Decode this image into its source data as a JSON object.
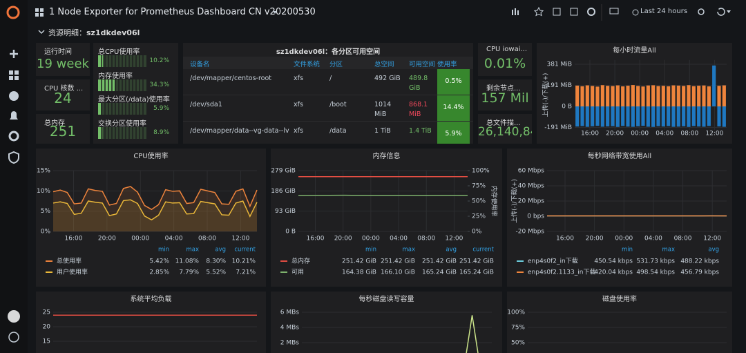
{
  "topbar": {
    "title": "1 Node Exporter for Prometheus Dashboard CN v20200530",
    "time_range": "Last 24 hours"
  },
  "row": {
    "label": "资源明细：",
    "host": "sz1dkdev06l"
  },
  "stats": [
    {
      "title": "运行时间",
      "value": "19 week",
      "color": "#73bf69"
    },
    {
      "title": "CPU 核数 ...",
      "value": 24,
      "color": "#73bf69"
    },
    {
      "title": "总内存",
      "value": 251,
      "color": "#73bf69"
    },
    {
      "title": "CPU iowai...",
      "value": "0.01%",
      "color": "#73bf69"
    },
    {
      "title": "剩余节点...",
      "value": "157 Mil",
      "color": "#73bf69"
    },
    {
      "title": "总文件描...",
      "value": "26,140,84",
      "color": "#73bf69"
    }
  ],
  "gauges": {
    "range": [
      0,
      100
    ],
    "color": "#73bf69",
    "items": [
      {
        "label": "总CPU使用率",
        "value": 10.2,
        "value_label": "10.2%"
      },
      {
        "label": "内存使用率",
        "value": 34.3,
        "value_label": "34.3%"
      },
      {
        "label": "最大分区(/data)使用率",
        "value": 5.9,
        "value_label": "5.9%"
      },
      {
        "label": "交换分区使用率",
        "value": 8.9,
        "value_label": "8.9%"
      }
    ]
  },
  "table": {
    "title": "sz1dkdev06l：各分区可用空间",
    "columns": [
      "设备名",
      "文件系统",
      "分区",
      "总空间",
      "可用空间",
      "使用率"
    ],
    "rows": [
      [
        "/dev/mapper/centos-root",
        "xfs",
        "/",
        "492 GiB",
        "489.8 GiB",
        "0.5%"
      ],
      [
        "/dev/sda1",
        "xfs",
        "/boot",
        "1014 MiB",
        "868.1 MiB",
        "14.4%"
      ],
      [
        "/dev/mapper/data--vg-data--lv",
        "xfs",
        "/data",
        "1 TiB",
        "1.4 TiB",
        "5.9%"
      ]
    ],
    "available_colors": [
      "#73bf69",
      "#f2495c",
      "#73bf69"
    ],
    "usage_color": "#37872d"
  },
  "graphs": [
    {
      "type": "bar",
      "title": "每小时流量All",
      "ylim": [
        -215,
        420
      ],
      "yticks": [
        {
          "value": 381,
          "label": "381 MiB"
        },
        {
          "value": 191,
          "label": "191 MiB"
        },
        {
          "value": 0,
          "label": "0 B"
        },
        {
          "value": -191,
          "label": "-191 MiB"
        }
      ],
      "xticks": [
        "16:00",
        "20:00",
        "00:00",
        "04:00",
        "08:00",
        "12:00"
      ],
      "y_label": "上传(-)/下载(+)",
      "series": [
        {
          "color": "#ef843c",
          "values": [
            188,
            182,
            190,
            185,
            179,
            192,
            186,
            184,
            190,
            181,
            187,
            193,
            185,
            180,
            189,
            191,
            184,
            186,
            182,
            190,
            188,
            185,
            192,
            183,
            187,
            189,
            181,
            null,
            186,
            190
          ]
        },
        {
          "color": "#1f78c1",
          "values": [
            -182,
            -178,
            -185,
            -180,
            -176,
            -184,
            -181,
            -179,
            -186,
            -177,
            -183,
            -185,
            -180,
            -176,
            -184,
            -186,
            -179,
            -182,
            -178,
            -185,
            -183,
            -180,
            -186,
            -178,
            -182,
            -184,
            -177,
            370,
            -181,
            -185
          ]
        }
      ]
    },
    {
      "type": "line",
      "title": "CPU使用率",
      "ylim": [
        0,
        15
      ],
      "fill": true,
      "yticks": [
        {
          "value": 15,
          "label": "15%"
        },
        {
          "value": 10,
          "label": "10%"
        },
        {
          "value": 5,
          "label": "5%"
        },
        {
          "value": 0,
          "label": "0%"
        }
      ],
      "xticks": [
        "16:00",
        "20:00",
        "00:00",
        "04:00",
        "08:00",
        "12:00"
      ],
      "legend_columns": [
        "min",
        "max",
        "avg",
        "current"
      ],
      "series": [
        {
          "name": "总使用率",
          "color": "#ef843c",
          "values": [
            9.8,
            10.2,
            9.6,
            6.8,
            7.0,
            10.5,
            10.1,
            9.9,
            6.5,
            6.9,
            10.6,
            11.08,
            9.7,
            6.4,
            5.42,
            6.6,
            10.3,
            9.9,
            10.0,
            6.9,
            7.1,
            10.4,
            10.0,
            9.6,
            6.8,
            6.7,
            9.9,
            10.5,
            6.2,
            10.21
          ],
          "stats": [
            "5.42%",
            "11.08%",
            "8.30%",
            "10.21%"
          ]
        },
        {
          "name": "用户使用率",
          "color": "#eab839",
          "values": [
            7.0,
            7.3,
            6.9,
            4.2,
            4.5,
            7.5,
            7.2,
            7.0,
            3.9,
            4.3,
            7.6,
            7.79,
            6.9,
            3.8,
            2.85,
            4.0,
            7.3,
            7.0,
            7.1,
            4.3,
            4.4,
            7.4,
            7.1,
            6.8,
            4.1,
            4.0,
            7.0,
            7.5,
            3.7,
            7.21
          ],
          "stats": [
            "2.85%",
            "7.79%",
            "5.52%",
            "7.21%"
          ]
        }
      ]
    },
    {
      "type": "line",
      "title": "内存信息",
      "ylim": [
        0,
        279
      ],
      "yticks": [
        {
          "value": 279,
          "label": "279 GiB"
        },
        {
          "value": 186,
          "label": "186 GiB"
        },
        {
          "value": 93,
          "label": "93 GiB"
        },
        {
          "value": 0,
          "label": "0 B"
        }
      ],
      "y2lim": [
        0,
        100
      ],
      "y2ticks": [
        {
          "value": 100,
          "label": "100%"
        },
        {
          "value": 75,
          "label": "75%"
        },
        {
          "value": 50,
          "label": "50%"
        },
        {
          "value": 25,
          "label": "25%"
        },
        {
          "value": 0,
          "label": "0%"
        }
      ],
      "y2_label": "内存使用率",
      "xticks": [
        "16:00",
        "20:00",
        "00:00",
        "04:00",
        "08:00",
        "12:00"
      ],
      "legend_columns": [
        "min",
        "max",
        "avg",
        "current"
      ],
      "series": [
        {
          "name": "总内存",
          "color": "#e24d42",
          "values": [
            251.42,
            251.42,
            251.42,
            251.42,
            251.42,
            251.42,
            251.42,
            251.42,
            251.42,
            251.42,
            251.42,
            251.42
          ],
          "stats": [
            "251.42 GiB",
            "251.42 GiB",
            "251.42 GiB",
            "251.42 GiB"
          ]
        },
        {
          "name": "可用",
          "color": "#7eb26d",
          "values": [
            164.6,
            165.1,
            165.8,
            166.1,
            165.5,
            164.9,
            165.0,
            165.3,
            164.38,
            165.2,
            165.6,
            165.24
          ],
          "stats": [
            "164.38 GiB",
            "166.10 GiB",
            "165.24 GiB",
            "165.24 GiB"
          ]
        }
      ]
    },
    {
      "type": "line",
      "title": "每秒网络带宽使用All",
      "ylim": [
        -20,
        60
      ],
      "yticks": [
        {
          "value": 60,
          "label": "60 Mbps"
        },
        {
          "value": 40,
          "label": "40 Mbps"
        },
        {
          "value": 20,
          "label": "20 Mbps"
        },
        {
          "value": 0,
          "label": "0 bps"
        },
        {
          "value": -20,
          "label": "-20 Mbps"
        }
      ],
      "xticks": [
        "16:00",
        "20:00",
        "00:00",
        "04:00",
        "08:00",
        "12:00"
      ],
      "y_label": "上传(-)/下载(+)",
      "legend_columns": [
        "min",
        "max",
        "avg"
      ],
      "series": [
        {
          "name": "enp4s0f2_in下载",
          "color": "#6ed0e0",
          "values": [
            0.48,
            0.49,
            0.47,
            0.5,
            0.49,
            0.51,
            0.48,
            0.47,
            0.49,
            0.5,
            0.52,
            0.49
          ],
          "stats": [
            "450.54 kbps",
            "531.73 kbps",
            "488.22 kbps"
          ]
        },
        {
          "name": "enp4s0f2.1133_in下载",
          "color": "#ef843c",
          "values": [
            0.45,
            0.46,
            0.44,
            0.47,
            0.46,
            0.48,
            0.45,
            0.44,
            0.46,
            0.47,
            0.49,
            0.46
          ],
          "stats": [
            "420.04 kbps",
            "498.54 kbps",
            "456.79 kbps"
          ]
        }
      ]
    },
    {
      "type": "line",
      "title": "系统平均负载",
      "ylim": [
        0,
        25
      ],
      "yticks": [
        25,
        20,
        15
      ],
      "series": [
        {
          "color": "#e24d42",
          "values": [
            24,
            24,
            24,
            24,
            24,
            24,
            24,
            24,
            24,
            24,
            24,
            24
          ]
        }
      ]
    },
    {
      "type": "line",
      "title": "每秒磁盘读写容量",
      "ylim": [
        0,
        6
      ],
      "yticks": [
        {
          "value": 6,
          "label": "6 MBs"
        },
        {
          "value": 4,
          "label": "4 MBs"
        },
        {
          "value": 2,
          "label": "2 MBs"
        }
      ],
      "series": [
        {
          "color": "#cce58a",
          "values": [
            0,
            0,
            0,
            0,
            0,
            0,
            0,
            0,
            0,
            0,
            0,
            0,
            0,
            0,
            0,
            0,
            0,
            0,
            0,
            0,
            0,
            0,
            0,
            0,
            0,
            0,
            5.6,
            0,
            0,
            0
          ]
        }
      ]
    },
    {
      "type": "line",
      "title": "磁盘使用率",
      "ylim": [
        0,
        100
      ],
      "yticks": [
        {
          "value": 100,
          "label": "100%"
        },
        {
          "value": 75,
          "label": "75%"
        },
        {
          "value": 50,
          "label": "50%"
        }
      ]
    }
  ]
}
